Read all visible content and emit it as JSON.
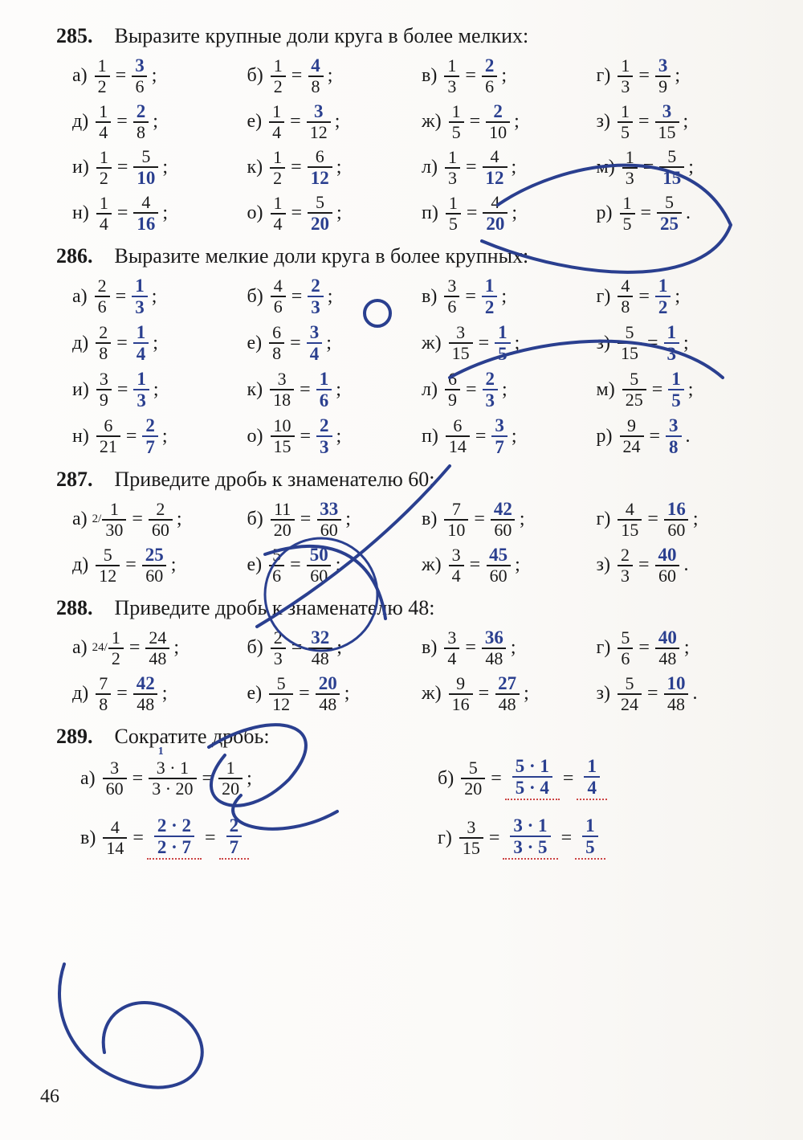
{
  "page_number": "46",
  "colors": {
    "ink": "#1a1a1a",
    "pen": "#2a3f8f",
    "dotted": "#c44"
  },
  "problems": {
    "285": {
      "title": "Выразите крупные доли круга в более мелких:",
      "items": [
        {
          "l": "а)",
          "a": "1",
          "b": "2",
          "c": "3",
          "d": "6",
          "hw": "c",
          "p": ";"
        },
        {
          "l": "б)",
          "a": "1",
          "b": "2",
          "c": "4",
          "d": "8",
          "hw": "c",
          "p": ";"
        },
        {
          "l": "в)",
          "a": "1",
          "b": "3",
          "c": "2",
          "d": "6",
          "hw": "c",
          "p": ";"
        },
        {
          "l": "г)",
          "a": "1",
          "b": "3",
          "c": "3",
          "d": "9",
          "hw": "c",
          "p": ";"
        },
        {
          "l": "д)",
          "a": "1",
          "b": "4",
          "c": "2",
          "d": "8",
          "hw": "c",
          "p": ";"
        },
        {
          "l": "е)",
          "a": "1",
          "b": "4",
          "c": "3",
          "d": "12",
          "hw": "c",
          "p": ";"
        },
        {
          "l": "ж)",
          "a": "1",
          "b": "5",
          "c": "2",
          "d": "10",
          "hw": "c",
          "p": ";"
        },
        {
          "l": "з)",
          "a": "1",
          "b": "5",
          "c": "3",
          "d": "15",
          "hw": "c",
          "p": ";"
        },
        {
          "l": "и)",
          "a": "1",
          "b": "2",
          "c": "5",
          "d": "10",
          "hw": "d",
          "p": ";"
        },
        {
          "l": "к)",
          "a": "1",
          "b": "2",
          "c": "6",
          "d": "12",
          "hw": "d",
          "p": ";"
        },
        {
          "l": "л)",
          "a": "1",
          "b": "3",
          "c": "4",
          "d": "12",
          "hw": "d",
          "p": ";"
        },
        {
          "l": "м)",
          "a": "1",
          "b": "3",
          "c": "5",
          "d": "15",
          "hw": "d",
          "p": ";"
        },
        {
          "l": "н)",
          "a": "1",
          "b": "4",
          "c": "4",
          "d": "16",
          "hw": "d",
          "p": ";"
        },
        {
          "l": "о)",
          "a": "1",
          "b": "4",
          "c": "5",
          "d": "20",
          "hw": "d",
          "p": ";"
        },
        {
          "l": "п)",
          "a": "1",
          "b": "5",
          "c": "4",
          "d": "20",
          "hw": "d",
          "p": ";"
        },
        {
          "l": "р)",
          "a": "1",
          "b": "5",
          "c": "5",
          "d": "25",
          "hw": "d",
          "p": "."
        }
      ]
    },
    "286": {
      "title": "Выразите мелкие доли круга в более крупных:",
      "items": [
        {
          "l": "а)",
          "a": "2",
          "b": "6",
          "c": "1",
          "d": "3",
          "hw": "cd",
          "p": ";"
        },
        {
          "l": "б)",
          "a": "4",
          "b": "6",
          "c": "2",
          "d": "3",
          "hw": "cd",
          "p": ";"
        },
        {
          "l": "в)",
          "a": "3",
          "b": "6",
          "c": "1",
          "d": "2",
          "hw": "cd",
          "p": ";"
        },
        {
          "l": "г)",
          "a": "4",
          "b": "8",
          "c": "1",
          "d": "2",
          "hw": "cd",
          "p": ";"
        },
        {
          "l": "д)",
          "a": "2",
          "b": "8",
          "c": "1",
          "d": "4",
          "hw": "cd",
          "p": ";"
        },
        {
          "l": "е)",
          "a": "6",
          "b": "8",
          "c": "3",
          "d": "4",
          "hw": "cd",
          "p": ";"
        },
        {
          "l": "ж)",
          "a": "3",
          "b": "15",
          "c": "1",
          "d": "5",
          "hw": "cd",
          "p": ";"
        },
        {
          "l": "з)",
          "a": "5",
          "b": "15",
          "c": "1",
          "d": "3",
          "hw": "cd",
          "p": ";"
        },
        {
          "l": "и)",
          "a": "3",
          "b": "9",
          "c": "1",
          "d": "3",
          "hw": "cd",
          "p": ";"
        },
        {
          "l": "к)",
          "a": "3",
          "b": "18",
          "c": "1",
          "d": "6",
          "hw": "cd",
          "p": ";"
        },
        {
          "l": "л)",
          "a": "6",
          "b": "9",
          "c": "2",
          "d": "3",
          "hw": "cd",
          "p": ";"
        },
        {
          "l": "м)",
          "a": "5",
          "b": "25",
          "c": "1",
          "d": "5",
          "hw": "cd",
          "p": ";"
        },
        {
          "l": "н)",
          "a": "6",
          "b": "21",
          "c": "2",
          "d": "7",
          "hw": "cd",
          "p": ";"
        },
        {
          "l": "о)",
          "a": "10",
          "b": "15",
          "c": "2",
          "d": "3",
          "hw": "cd",
          "p": ";"
        },
        {
          "l": "п)",
          "a": "6",
          "b": "14",
          "c": "3",
          "d": "7",
          "hw": "cd",
          "p": ";"
        },
        {
          "l": "р)",
          "a": "9",
          "b": "24",
          "c": "3",
          "d": "8",
          "hw": "cd",
          "p": "."
        }
      ]
    },
    "287": {
      "title": "Приведите дробь к знаменателю 60:",
      "items": [
        {
          "l": "а)",
          "sup": "2/",
          "a": "1",
          "b": "30",
          "c": "2",
          "d": "60",
          "hw": "",
          "p": ";"
        },
        {
          "l": "б)",
          "a": "11",
          "b": "20",
          "c": "33",
          "d": "60",
          "hw": "c",
          "p": ";"
        },
        {
          "l": "в)",
          "a": "7",
          "b": "10",
          "c": "42",
          "d": "60",
          "hw": "c",
          "p": ";"
        },
        {
          "l": "г)",
          "a": "4",
          "b": "15",
          "c": "16",
          "d": "60",
          "hw": "c",
          "p": ";"
        },
        {
          "l": "д)",
          "a": "5",
          "b": "12",
          "c": "25",
          "d": "60",
          "hw": "c",
          "p": ";"
        },
        {
          "l": "е)",
          "a": "5",
          "b": "6",
          "c": "50",
          "d": "60",
          "hw": "c",
          "p": ";"
        },
        {
          "l": "ж)",
          "a": "3",
          "b": "4",
          "c": "45",
          "d": "60",
          "hw": "c",
          "p": ";"
        },
        {
          "l": "з)",
          "a": "2",
          "b": "3",
          "c": "40",
          "d": "60",
          "hw": "c",
          "p": "."
        }
      ]
    },
    "288": {
      "title": "Приведите дробь к знаменателю 48:",
      "items": [
        {
          "l": "а)",
          "sup": "24/",
          "a": "1",
          "b": "2",
          "c": "24",
          "d": "48",
          "hw": "",
          "p": ";"
        },
        {
          "l": "б)",
          "a": "2",
          "b": "3",
          "c": "32",
          "d": "48",
          "hw": "c",
          "p": ";"
        },
        {
          "l": "в)",
          "a": "3",
          "b": "4",
          "c": "36",
          "d": "48",
          "hw": "c",
          "p": ";"
        },
        {
          "l": "г)",
          "a": "5",
          "b": "6",
          "c": "40",
          "d": "48",
          "hw": "c",
          "p": ";"
        },
        {
          "l": "д)",
          "a": "7",
          "b": "8",
          "c": "42",
          "d": "48",
          "hw": "c",
          "p": ";"
        },
        {
          "l": "е)",
          "a": "5",
          "b": "12",
          "c": "20",
          "d": "48",
          "hw": "c",
          "p": ";"
        },
        {
          "l": "ж)",
          "a": "9",
          "b": "16",
          "c": "27",
          "d": "48",
          "hw": "c",
          "p": ";"
        },
        {
          "l": "з)",
          "a": "5",
          "b": "24",
          "c": "10",
          "d": "48",
          "hw": "c",
          "p": "."
        }
      ]
    },
    "289": {
      "title": "Сократите дробь:",
      "items": [
        {
          "l": "а)",
          "a": "3",
          "b": "60",
          "mid_n": "3 · 1",
          "mid_d": "3 · 20",
          "res_n": "1",
          "res_d": "20",
          "hw": "mid",
          "hint_top": "1",
          "hint_bot": "1",
          "p": ";"
        },
        {
          "l": "б)",
          "a": "5",
          "b": "20",
          "mid_n": "5 · 1",
          "mid_d": "5 · 4",
          "res_n": "1",
          "res_d": "4",
          "hw": "all",
          "p": ""
        },
        {
          "l": "в)",
          "a": "4",
          "b": "14",
          "mid_n": "2 · 2",
          "mid_d": "2 · 7",
          "res_n": "2",
          "res_d": "7",
          "hw": "all",
          "p": ""
        },
        {
          "l": "г)",
          "a": "3",
          "b": "15",
          "mid_n": "3 · 1",
          "mid_d": "3 · 5",
          "res_n": "1",
          "res_d": "5",
          "hw": "all",
          "p": ""
        }
      ]
    }
  }
}
